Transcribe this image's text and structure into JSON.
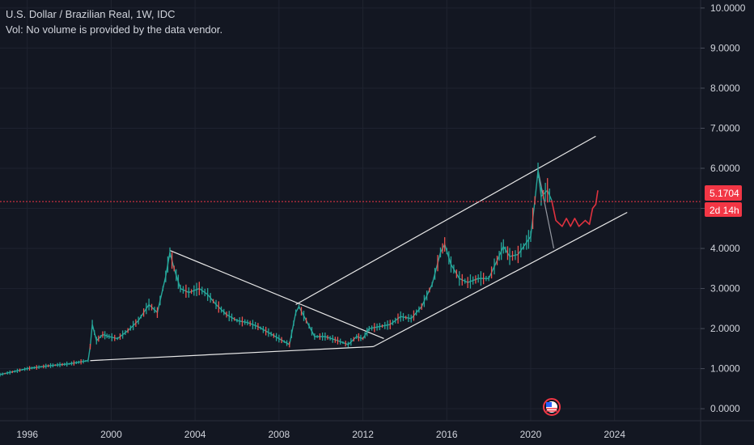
{
  "chart_data": {
    "type": "candlestick",
    "title": "U.S. Dollar / Brazilian Real, 1W, IDC",
    "subtitle": "Vol: No volume is provided by the data vendor.",
    "y_ticks": [
      "10.0000",
      "9.0000",
      "8.0000",
      "7.0000",
      "6.0000",
      "5.0000",
      "4.0000",
      "3.0000",
      "2.0000",
      "1.0000",
      "0.0000"
    ],
    "y_tick_values": [
      10,
      9,
      8,
      7,
      6,
      5,
      4,
      3,
      2,
      1,
      0
    ],
    "x_ticks": [
      "1996",
      "2000",
      "2004",
      "2008",
      "2012",
      "2016",
      "2020",
      "2024"
    ],
    "x_tick_values": [
      1996,
      2000,
      2004,
      2008,
      2012,
      2016,
      2020,
      2024
    ],
    "ylim": [
      -0.3,
      10.2
    ],
    "xlim": [
      1994.7,
      2028.1
    ],
    "grid": true,
    "current_price": "5.1704",
    "current_price_value": 5.1704,
    "countdown": "2d 14h",
    "price_series": [
      [
        1994.7,
        0.85
      ],
      [
        1996.0,
        1.0
      ],
      [
        1997.0,
        1.07
      ],
      [
        1998.0,
        1.12
      ],
      [
        1998.9,
        1.2
      ],
      [
        1999.0,
        1.55
      ],
      [
        1999.1,
        2.1
      ],
      [
        1999.3,
        1.7
      ],
      [
        1999.6,
        1.85
      ],
      [
        1999.9,
        1.8
      ],
      [
        2000.3,
        1.75
      ],
      [
        2000.8,
        1.95
      ],
      [
        2001.3,
        2.2
      ],
      [
        2001.8,
        2.6
      ],
      [
        2002.2,
        2.4
      ],
      [
        2002.6,
        3.3
      ],
      [
        2002.8,
        3.9
      ],
      [
        2003.0,
        3.5
      ],
      [
        2003.3,
        3.0
      ],
      [
        2003.7,
        2.9
      ],
      [
        2004.2,
        3.0
      ],
      [
        2004.6,
        2.85
      ],
      [
        2005.0,
        2.6
      ],
      [
        2005.5,
        2.35
      ],
      [
        2006.0,
        2.2
      ],
      [
        2006.5,
        2.15
      ],
      [
        2007.0,
        2.05
      ],
      [
        2007.5,
        1.9
      ],
      [
        2008.0,
        1.75
      ],
      [
        2008.5,
        1.6
      ],
      [
        2008.8,
        2.4
      ],
      [
        2008.95,
        2.55
      ],
      [
        2009.3,
        2.2
      ],
      [
        2009.7,
        1.8
      ],
      [
        2010.2,
        1.8
      ],
      [
        2010.8,
        1.7
      ],
      [
        2011.3,
        1.6
      ],
      [
        2011.7,
        1.8
      ],
      [
        2012.0,
        1.75
      ],
      [
        2012.3,
        2.0
      ],
      [
        2012.8,
        2.05
      ],
      [
        2013.3,
        2.1
      ],
      [
        2013.8,
        2.3
      ],
      [
        2014.3,
        2.25
      ],
      [
        2014.8,
        2.55
      ],
      [
        2015.3,
        3.1
      ],
      [
        2015.7,
        3.9
      ],
      [
        2015.9,
        4.1
      ],
      [
        2016.2,
        3.6
      ],
      [
        2016.6,
        3.25
      ],
      [
        2017.0,
        3.15
      ],
      [
        2017.5,
        3.25
      ],
      [
        2018.0,
        3.25
      ],
      [
        2018.4,
        3.7
      ],
      [
        2018.7,
        4.05
      ],
      [
        2019.0,
        3.8
      ],
      [
        2019.4,
        3.85
      ],
      [
        2019.8,
        4.15
      ],
      [
        2020.0,
        4.3
      ],
      [
        2020.2,
        5.2
      ],
      [
        2020.35,
        5.95
      ],
      [
        2020.5,
        5.3
      ],
      [
        2020.8,
        5.45
      ],
      [
        2021.0,
        5.2
      ]
    ],
    "projection_series": [
      [
        2021.0,
        5.2
      ],
      [
        2021.2,
        4.7
      ],
      [
        2021.5,
        4.55
      ],
      [
        2021.7,
        4.75
      ],
      [
        2021.9,
        4.55
      ],
      [
        2022.1,
        4.75
      ],
      [
        2022.3,
        4.55
      ],
      [
        2022.6,
        4.7
      ],
      [
        2022.8,
        4.6
      ],
      [
        2022.95,
        5.0
      ],
      [
        2023.1,
        5.1
      ],
      [
        2023.2,
        5.45
      ]
    ],
    "drawings": [
      {
        "name": "support-line",
        "points": [
          [
            1999.0,
            1.2
          ],
          [
            2012.5,
            1.55
          ]
        ]
      },
      {
        "name": "descending-line",
        "points": [
          [
            2002.8,
            3.95
          ],
          [
            2013.0,
            1.75
          ]
        ]
      },
      {
        "name": "channel-upper-line",
        "points": [
          [
            2008.8,
            2.6
          ],
          [
            2023.1,
            6.8
          ]
        ]
      },
      {
        "name": "channel-lower-line",
        "points": [
          [
            2012.5,
            1.55
          ],
          [
            2024.6,
            4.9
          ]
        ]
      },
      {
        "name": "drop-line",
        "points": [
          [
            2020.35,
            5.95
          ],
          [
            2021.1,
            4.0
          ]
        ]
      }
    ]
  }
}
